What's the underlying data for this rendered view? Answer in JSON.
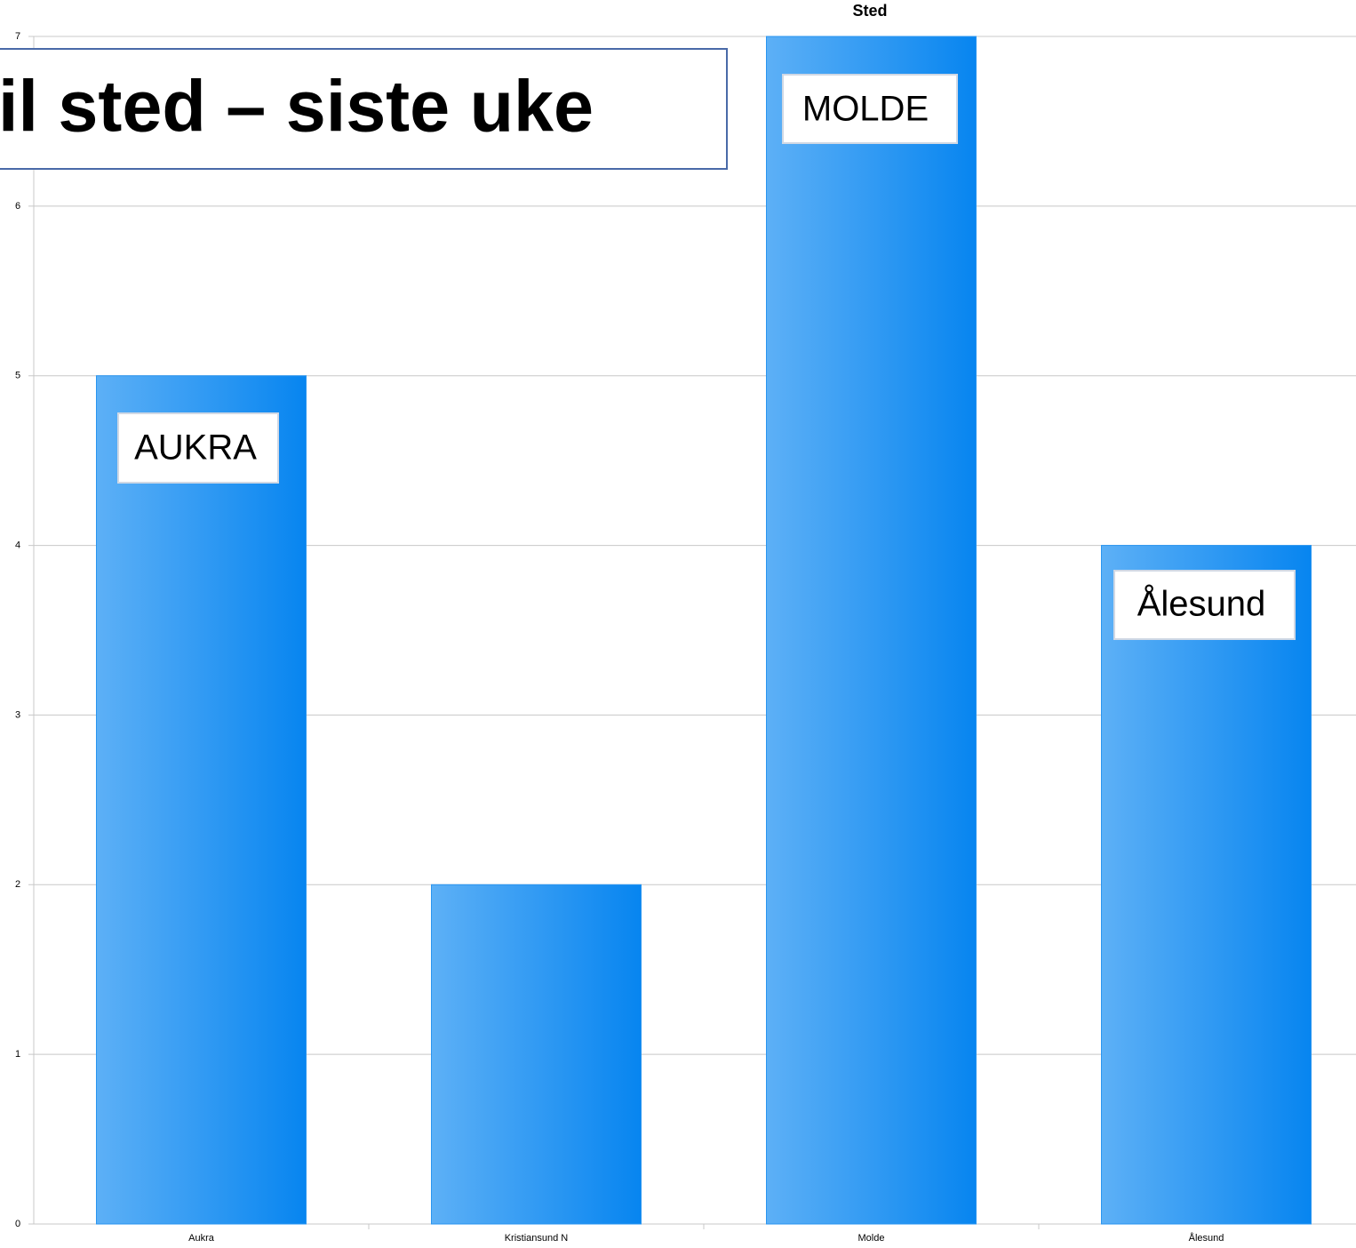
{
  "chart_data": {
    "type": "bar",
    "title": "Sted",
    "categories": [
      "Aukra",
      "Kristiansund N",
      "Molde",
      "Ålesund"
    ],
    "values": [
      5,
      2,
      7,
      4
    ],
    "color": "#2a95f0",
    "ylim": [
      0,
      7
    ],
    "yticks": [
      0,
      1,
      2,
      3,
      4,
      5,
      6,
      7
    ],
    "grid": true,
    "annotations": [
      "il sted – siste uke",
      "AUKRA",
      "MOLDE",
      "Ålesund"
    ]
  }
}
